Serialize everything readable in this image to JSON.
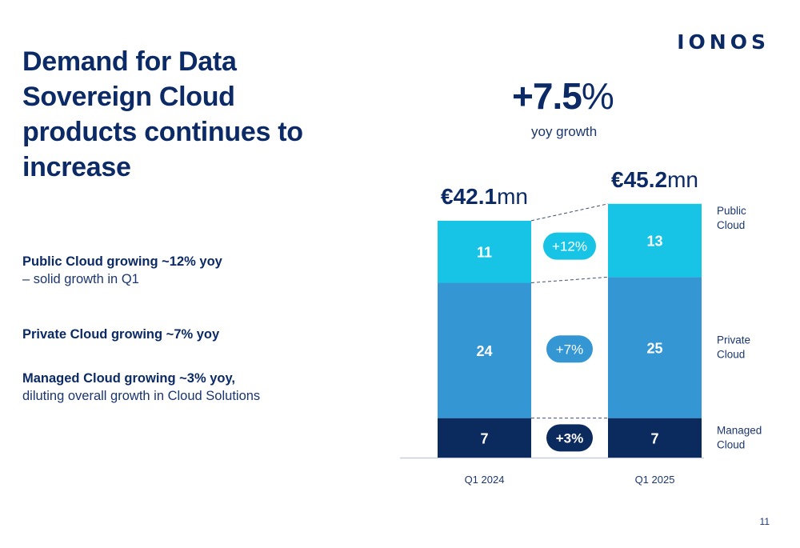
{
  "brand": {
    "logo_text": "IONOS"
  },
  "title": "Demand for Data Sovereign Cloud products continues to increase",
  "bullets": [
    {
      "strong": "Public Cloud growing ~12% yoy",
      "sub": "– solid growth in Q1"
    },
    {
      "strong": "Private Cloud growing ~7% yoy",
      "sub": ""
    },
    {
      "strong": "Managed Cloud growing ~3% yoy,",
      "sub": "diluting overall growth in Cloud Solutions"
    }
  ],
  "headline": {
    "value": "+7.5",
    "unit": "%",
    "label": "yoy growth"
  },
  "page_number": "11",
  "colors": {
    "public": "#17c4e6",
    "private": "#3596d4",
    "managed": "#0b2a5e",
    "text": "#0b2a66"
  },
  "chart_data": {
    "type": "bar",
    "stacked": true,
    "categories": [
      "Q1 2024",
      "Q1 2025"
    ],
    "totals": [
      {
        "value": "€42.1",
        "unit": "mn"
      },
      {
        "value": "€45.2",
        "unit": "mn"
      }
    ],
    "series": [
      {
        "name": "Managed Cloud",
        "values": [
          7,
          7
        ],
        "color": "#0b2a5e",
        "growth": "+3%"
      },
      {
        "name": "Private Cloud",
        "values": [
          24,
          25
        ],
        "color": "#3596d4",
        "growth": "+7%"
      },
      {
        "name": "Public Cloud",
        "values": [
          11,
          13
        ],
        "color": "#17c4e6",
        "growth": "+12%"
      }
    ],
    "legend_placement": "right",
    "grid": false
  }
}
